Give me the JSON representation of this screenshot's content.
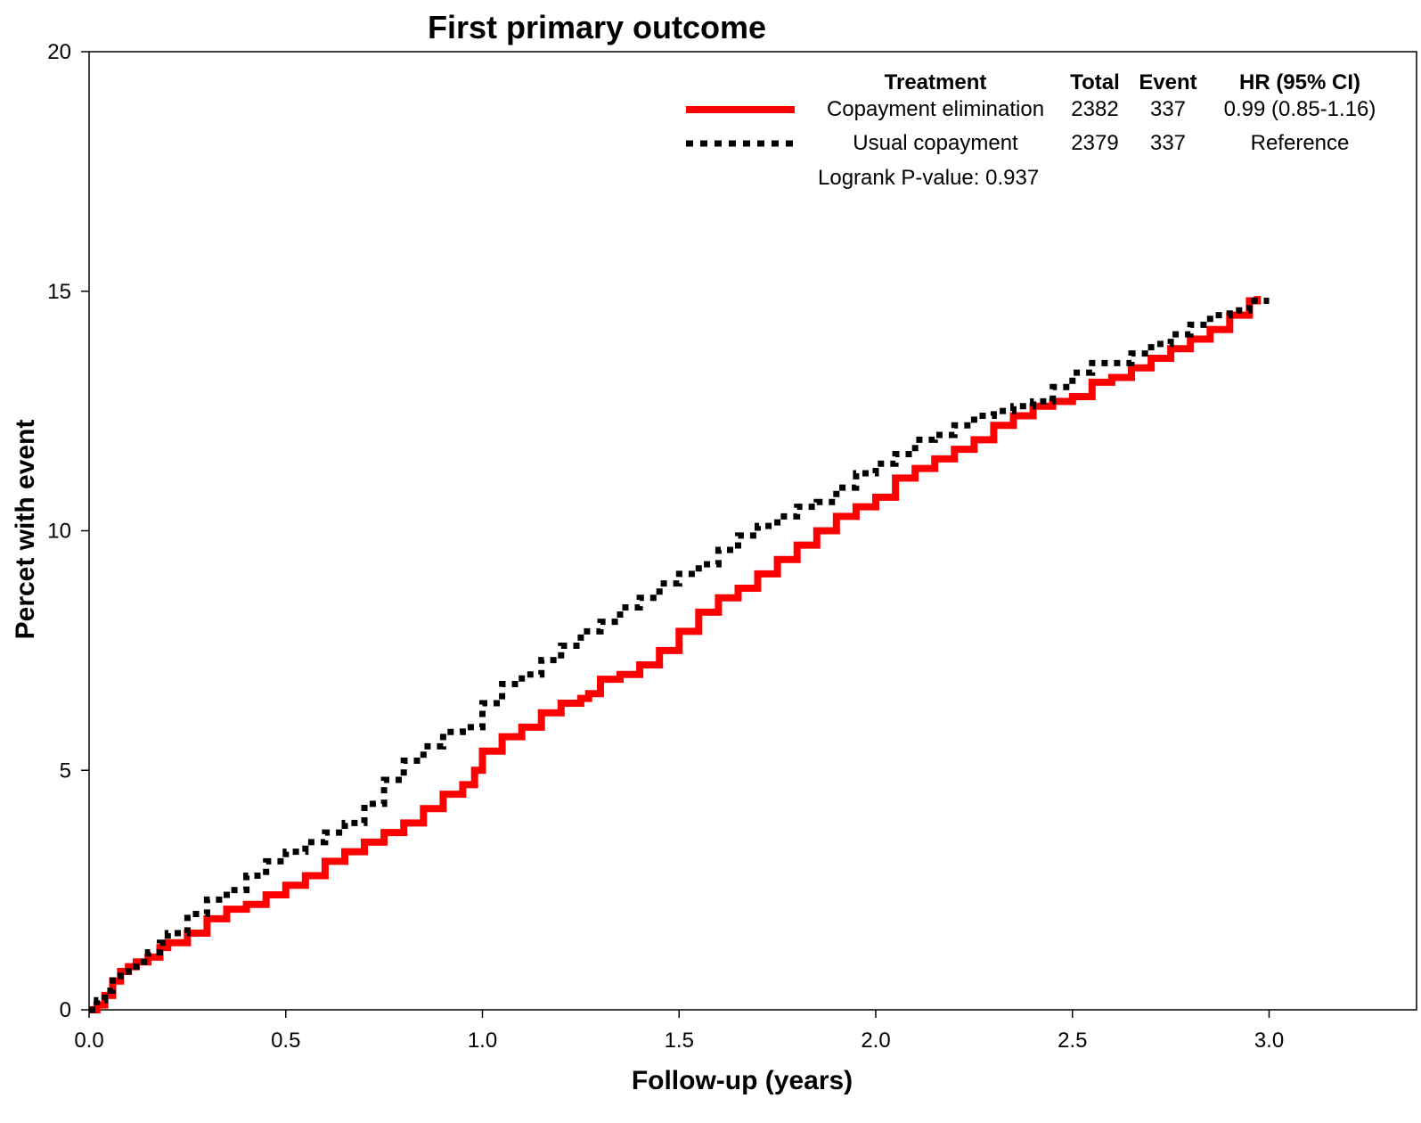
{
  "chart_data": {
    "type": "line",
    "title": "First primary outcome",
    "xlabel": "Follow-up (years)",
    "ylabel": "Percet with event",
    "xlim": [
      0,
      3.32
    ],
    "ylim": [
      0,
      20
    ],
    "xticks": [
      "0.0",
      "0.5",
      "1.0",
      "1.5",
      "2.0",
      "2.5",
      "3.0"
    ],
    "yticks": [
      "0",
      "5",
      "10",
      "15",
      "20"
    ],
    "grid": false,
    "legend_placement": "top-right",
    "legend": {
      "headers": {
        "treatment": "Treatment",
        "total": "Total",
        "event": "Event",
        "hr": "HR (95% CI)"
      },
      "rows": [
        {
          "treatment": "Copayment elimination",
          "total": "2382",
          "event": "337",
          "hr": "0.99 (0.85-1.16)"
        },
        {
          "treatment": "Usual copayment",
          "total": "2379",
          "event": "337",
          "hr": "Reference"
        }
      ],
      "pvalue": "Logrank P-value: 0.937"
    },
    "series": [
      {
        "name": "Copayment elimination",
        "color": "#ff0000",
        "style": "solid",
        "x": [
          0,
          0.02,
          0.04,
          0.06,
          0.08,
          0.1,
          0.12,
          0.15,
          0.18,
          0.2,
          0.25,
          0.3,
          0.35,
          0.4,
          0.45,
          0.5,
          0.55,
          0.6,
          0.65,
          0.7,
          0.75,
          0.8,
          0.85,
          0.9,
          0.95,
          0.98,
          1.0,
          1.05,
          1.1,
          1.15,
          1.2,
          1.25,
          1.27,
          1.3,
          1.35,
          1.4,
          1.45,
          1.5,
          1.55,
          1.6,
          1.65,
          1.7,
          1.75,
          1.8,
          1.85,
          1.9,
          1.95,
          2.0,
          2.05,
          2.1,
          2.15,
          2.2,
          2.25,
          2.3,
          2.35,
          2.4,
          2.45,
          2.5,
          2.55,
          2.6,
          2.65,
          2.7,
          2.75,
          2.8,
          2.85,
          2.9,
          2.95,
          2.97
        ],
        "y": [
          0,
          0.1,
          0.3,
          0.6,
          0.8,
          0.9,
          1.0,
          1.1,
          1.3,
          1.4,
          1.6,
          1.9,
          2.1,
          2.2,
          2.4,
          2.6,
          2.8,
          3.1,
          3.3,
          3.5,
          3.7,
          3.9,
          4.2,
          4.5,
          4.7,
          5.0,
          5.4,
          5.7,
          5.9,
          6.2,
          6.4,
          6.5,
          6.6,
          6.9,
          7.0,
          7.2,
          7.5,
          7.9,
          8.3,
          8.6,
          8.8,
          9.1,
          9.4,
          9.7,
          10.0,
          10.3,
          10.5,
          10.7,
          11.1,
          11.3,
          11.5,
          11.7,
          11.9,
          12.2,
          12.4,
          12.6,
          12.7,
          12.8,
          13.1,
          13.2,
          13.4,
          13.6,
          13.8,
          14.0,
          14.2,
          14.5,
          14.8,
          14.9
        ]
      },
      {
        "name": "Usual copayment",
        "color": "#000000",
        "style": "dotted",
        "x": [
          0,
          0.02,
          0.04,
          0.06,
          0.08,
          0.1,
          0.12,
          0.15,
          0.18,
          0.2,
          0.25,
          0.3,
          0.35,
          0.4,
          0.45,
          0.5,
          0.55,
          0.6,
          0.65,
          0.7,
          0.75,
          0.8,
          0.85,
          0.9,
          0.95,
          1.0,
          1.05,
          1.1,
          1.15,
          1.2,
          1.25,
          1.3,
          1.35,
          1.4,
          1.45,
          1.5,
          1.55,
          1.6,
          1.65,
          1.7,
          1.75,
          1.8,
          1.85,
          1.9,
          1.95,
          2.0,
          2.05,
          2.1,
          2.15,
          2.2,
          2.25,
          2.3,
          2.35,
          2.4,
          2.45,
          2.5,
          2.55,
          2.6,
          2.65,
          2.7,
          2.75,
          2.8,
          2.85,
          2.9,
          2.95,
          3.0
        ],
        "y": [
          0,
          0.2,
          0.4,
          0.7,
          0.8,
          0.9,
          1.0,
          1.2,
          1.4,
          1.6,
          2.0,
          2.3,
          2.5,
          2.8,
          3.1,
          3.3,
          3.5,
          3.7,
          3.9,
          4.3,
          4.8,
          5.2,
          5.5,
          5.8,
          5.9,
          6.4,
          6.8,
          7.0,
          7.3,
          7.6,
          7.9,
          8.1,
          8.4,
          8.6,
          8.9,
          9.1,
          9.3,
          9.6,
          9.9,
          10.1,
          10.3,
          10.5,
          10.6,
          10.9,
          11.2,
          11.4,
          11.6,
          11.9,
          12.0,
          12.2,
          12.4,
          12.5,
          12.6,
          12.7,
          13.0,
          13.3,
          13.5,
          13.5,
          13.7,
          13.9,
          14.1,
          14.3,
          14.5,
          14.6,
          14.8,
          14.8
        ]
      }
    ]
  }
}
